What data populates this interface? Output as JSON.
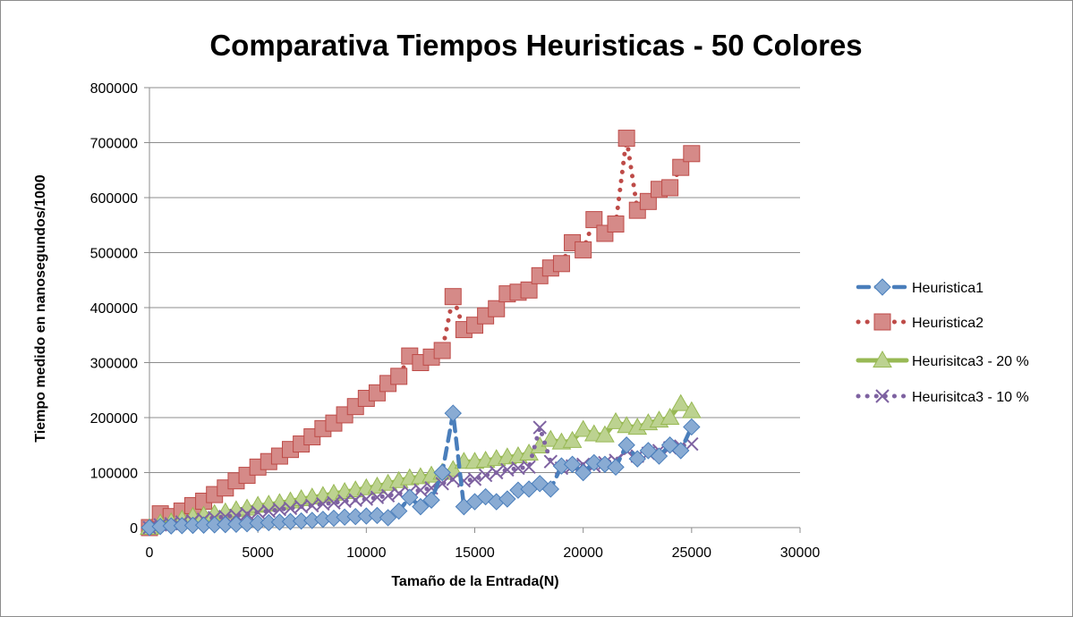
{
  "chart_data": {
    "type": "line",
    "title": "Comparativa Tiempos Heuristicas - 50 Colores",
    "xlabel": "Tamaño de la Entrada(N)",
    "ylabel": "Tiempo medido en nanosegundos/1000",
    "xlim": [
      0,
      30000
    ],
    "ylim": [
      0,
      800000
    ],
    "x_ticks": [
      "0",
      "5000",
      "10000",
      "15000",
      "20000",
      "25000",
      "30000"
    ],
    "y_ticks": [
      "0",
      "100000",
      "200000",
      "300000",
      "400000",
      "500000",
      "600000",
      "700000",
      "800000"
    ],
    "grid": "horizontal",
    "legend_position": "right",
    "series": [
      {
        "name": "Heuristica1",
        "color": "#4a7ebb",
        "marker": "diamond",
        "line_style": "dashed",
        "x": [
          0,
          500,
          1000,
          1500,
          2000,
          2500,
          3000,
          3500,
          4000,
          4500,
          5000,
          5500,
          6000,
          6500,
          7000,
          7500,
          8000,
          8500,
          9000,
          9500,
          10000,
          10500,
          11000,
          11500,
          12000,
          12500,
          13000,
          13500,
          14000,
          14500,
          15000,
          15500,
          16000,
          16500,
          17000,
          17500,
          18000,
          18500,
          19000,
          19500,
          20000,
          20500,
          21000,
          21500,
          22000,
          22500,
          23000,
          23500,
          24000,
          24500,
          25000
        ],
        "y": [
          0,
          2000,
          3000,
          3500,
          4000,
          4500,
          5000,
          5500,
          6000,
          7000,
          8000,
          9000,
          10000,
          11000,
          12000,
          13000,
          15000,
          17000,
          19000,
          20000,
          21000,
          22000,
          18000,
          30000,
          55000,
          38000,
          50000,
          100000,
          208000,
          38000,
          47000,
          56000,
          47000,
          52000,
          68000,
          70000,
          80000,
          70000,
          112000,
          115000,
          100000,
          118000,
          115000,
          110000,
          150000,
          125000,
          140000,
          130000,
          150000,
          140000,
          183000
        ]
      },
      {
        "name": "Heuristica2",
        "color": "#be4b48",
        "marker": "square",
        "line_style": "dotted",
        "x": [
          0,
          500,
          1000,
          1500,
          2000,
          2500,
          3000,
          3500,
          4000,
          4500,
          5000,
          5500,
          6000,
          6500,
          7000,
          7500,
          8000,
          8500,
          9000,
          9500,
          10000,
          10500,
          11000,
          11500,
          12000,
          12500,
          13000,
          13500,
          14000,
          14500,
          15000,
          15500,
          16000,
          16500,
          17000,
          17500,
          18000,
          18500,
          19000,
          19500,
          20000,
          20500,
          21000,
          21500,
          22000,
          22500,
          23000,
          23500,
          24000,
          24500,
          25000
        ],
        "y": [
          0,
          25000,
          20000,
          30000,
          40000,
          48000,
          60000,
          72000,
          85000,
          95000,
          110000,
          120000,
          130000,
          142000,
          152000,
          165000,
          180000,
          190000,
          205000,
          220000,
          235000,
          245000,
          262000,
          275000,
          312000,
          300000,
          310000,
          322000,
          420000,
          360000,
          368000,
          385000,
          398000,
          425000,
          428000,
          432000,
          458000,
          472000,
          480000,
          518000,
          505000,
          560000,
          535000,
          552000,
          708000,
          577000,
          593000,
          615000,
          618000,
          655000,
          680000
        ]
      },
      {
        "name": "Heurisitca3 - 20 %",
        "color": "#98b954",
        "marker": "triangle",
        "line_style": "solid",
        "x": [
          0,
          500,
          1000,
          1500,
          2000,
          2500,
          3000,
          3500,
          4000,
          4500,
          5000,
          5500,
          6000,
          6500,
          7000,
          7500,
          8000,
          8500,
          9000,
          9500,
          10000,
          10500,
          11000,
          11500,
          12000,
          12500,
          13000,
          13500,
          14000,
          14500,
          15000,
          15500,
          16000,
          16500,
          17000,
          17500,
          18000,
          18500,
          19000,
          19500,
          20000,
          20500,
          21000,
          21500,
          22000,
          22500,
          23000,
          23500,
          24000,
          24500,
          25000
        ],
        "y": [
          0,
          8000,
          10000,
          15000,
          20000,
          22000,
          25000,
          28000,
          32000,
          35000,
          40000,
          42000,
          45000,
          48000,
          52000,
          55000,
          58000,
          62000,
          65000,
          68000,
          72000,
          75000,
          80000,
          85000,
          90000,
          92000,
          95000,
          100000,
          105000,
          120000,
          120000,
          122000,
          125000,
          128000,
          130000,
          135000,
          148000,
          160000,
          155000,
          158000,
          178000,
          170000,
          168000,
          192000,
          185000,
          182000,
          190000,
          195000,
          200000,
          225000,
          212000
        ]
      },
      {
        "name": "Heurisitca3 - 10 %",
        "color": "#7e62a1",
        "marker": "x",
        "line_style": "dotted",
        "x": [
          0,
          500,
          1000,
          1500,
          2000,
          2500,
          3000,
          3500,
          4000,
          4500,
          5000,
          5500,
          6000,
          6500,
          7000,
          7500,
          8000,
          8500,
          9000,
          9500,
          10000,
          10500,
          11000,
          11500,
          12000,
          12500,
          13000,
          13500,
          14000,
          14500,
          15000,
          15500,
          16000,
          16500,
          17000,
          17500,
          18000,
          18500,
          19000,
          19500,
          20000,
          20500,
          21000,
          21500,
          22000,
          22500,
          23000,
          23500,
          24000,
          24500,
          25000
        ],
        "y": [
          0,
          5000,
          7000,
          10000,
          12000,
          15000,
          18000,
          20000,
          22000,
          25000,
          28000,
          30000,
          33000,
          35000,
          38000,
          40000,
          43000,
          45000,
          48000,
          50000,
          52000,
          55000,
          58000,
          62000,
          65000,
          68000,
          72000,
          80000,
          88000,
          85000,
          88000,
          95000,
          100000,
          105000,
          108000,
          110000,
          182000,
          120000,
          108000,
          112000,
          115000,
          112000,
          118000,
          122000,
          140000,
          130000,
          135000,
          140000,
          145000,
          148000,
          152000
        ]
      }
    ]
  }
}
